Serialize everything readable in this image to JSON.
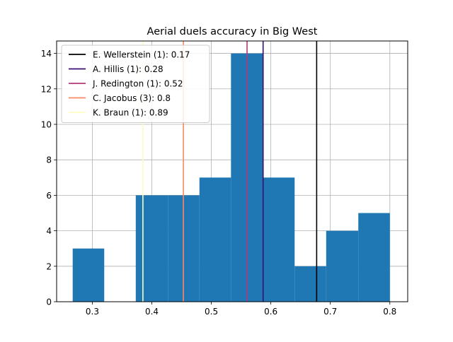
{
  "chart_data": {
    "type": "bar",
    "title": "Aerial duels accuracy in Big West",
    "xlabel": "",
    "ylabel": "",
    "xlim": [
      0.24,
      0.83
    ],
    "ylim": [
      0,
      14.7
    ],
    "x_ticks": [
      "0.3",
      "0.4",
      "0.5",
      "0.6",
      "0.7",
      "0.8"
    ],
    "x_tick_values": [
      0.3,
      0.4,
      0.5,
      0.6,
      0.7,
      0.8
    ],
    "y_ticks": [
      "0",
      "2",
      "4",
      "6",
      "8",
      "10",
      "12",
      "14"
    ],
    "y_tick_values": [
      0,
      2,
      4,
      6,
      8,
      10,
      12,
      14
    ],
    "grid": true,
    "legend_position": "top-left",
    "bar_color": "#1f77b4",
    "bins": [
      {
        "x0": 0.267,
        "x1": 0.32,
        "count": 3
      },
      {
        "x0": 0.32,
        "x1": 0.373,
        "count": 0
      },
      {
        "x0": 0.373,
        "x1": 0.427,
        "count": 6
      },
      {
        "x0": 0.427,
        "x1": 0.48,
        "count": 6
      },
      {
        "x0": 0.48,
        "x1": 0.533,
        "count": 7
      },
      {
        "x0": 0.533,
        "x1": 0.587,
        "count": 14
      },
      {
        "x0": 0.587,
        "x1": 0.64,
        "count": 7
      },
      {
        "x0": 0.64,
        "x1": 0.693,
        "count": 2
      },
      {
        "x0": 0.693,
        "x1": 0.747,
        "count": 4
      },
      {
        "x0": 0.747,
        "x1": 0.8,
        "count": 5
      }
    ],
    "vlines": [
      {
        "label": "E. Wellerstein (1): 0.17",
        "x": 0.677,
        "color": "#000000"
      },
      {
        "label": "A. Hillis (1): 0.28",
        "x": 0.587,
        "color": "#3b0f70"
      },
      {
        "label": "J. Redington (1): 0.52",
        "x": 0.56,
        "color": "#b5367a"
      },
      {
        "label": "C. Jacobus (3): 0.8",
        "x": 0.453,
        "color": "#fb8861"
      },
      {
        "label": "K. Braun (1): 0.89",
        "x": 0.385,
        "color": "#fcfdbf"
      }
    ]
  }
}
